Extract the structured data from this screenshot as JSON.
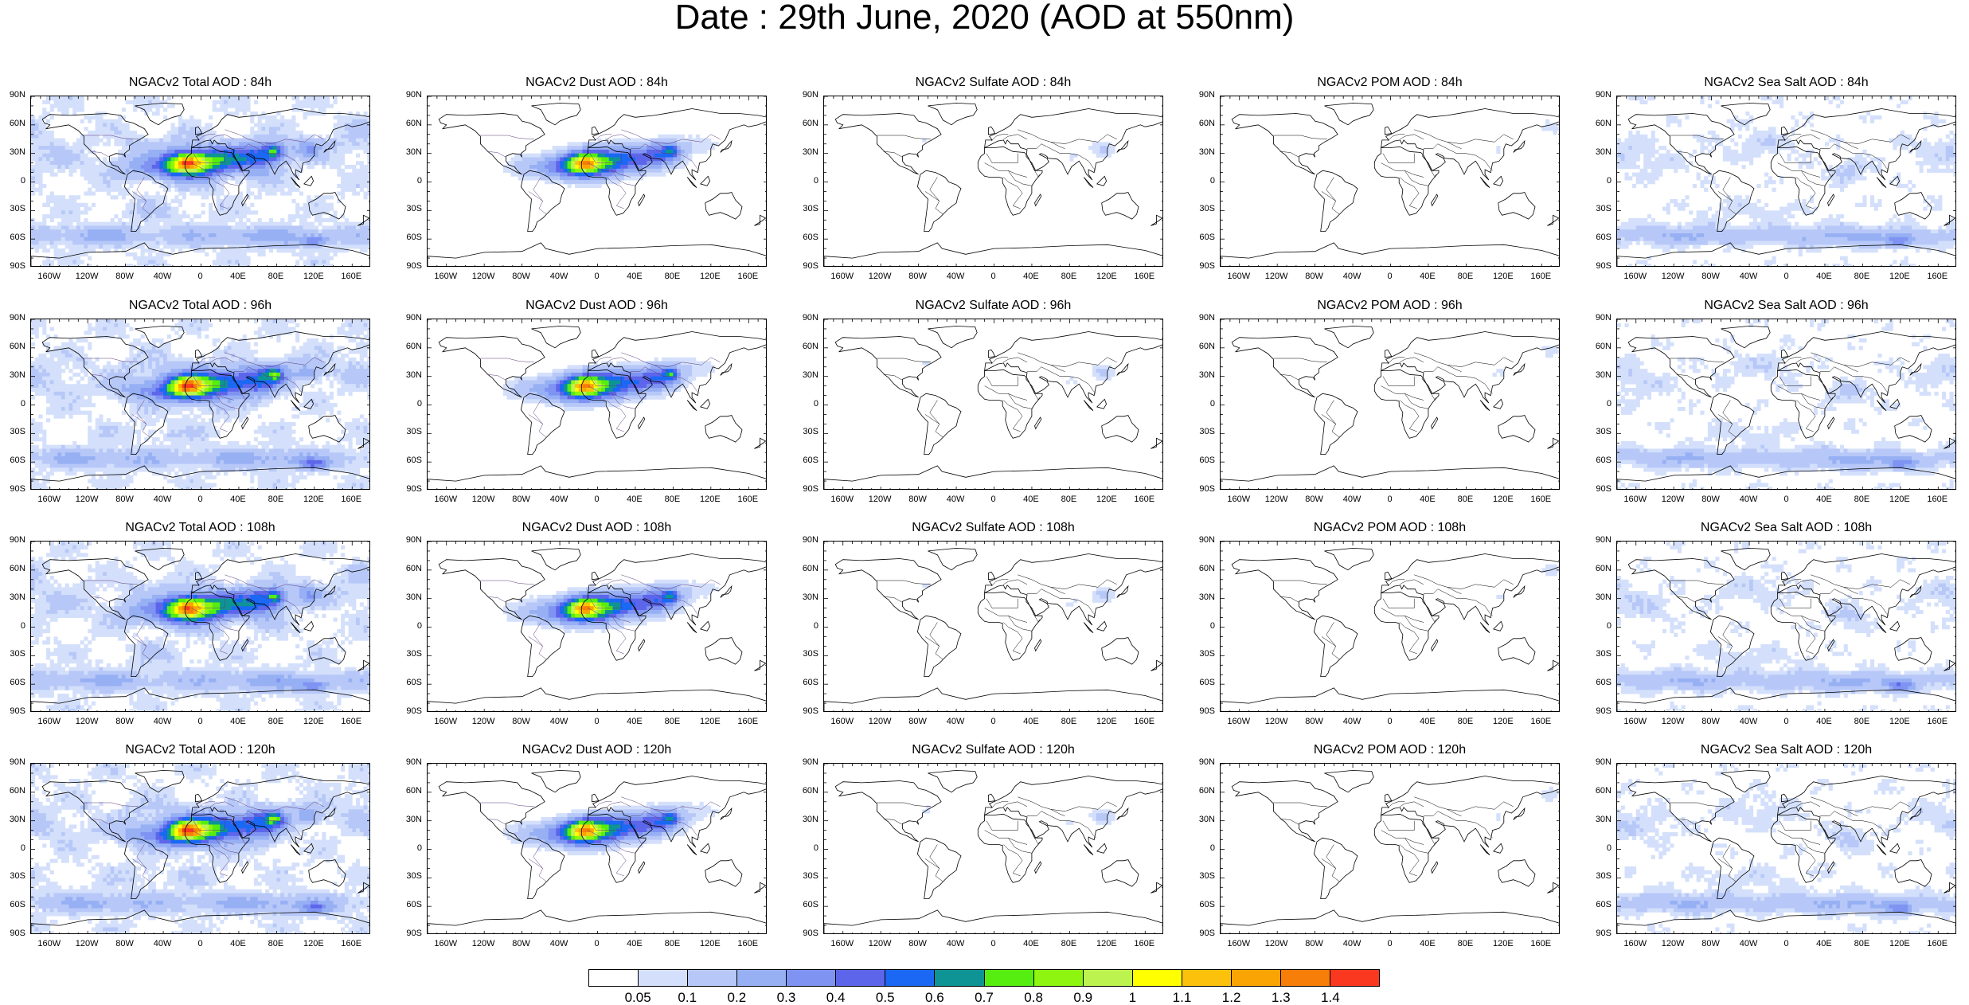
{
  "main_title": "Date : 29th June, 2020 (AOD at 550nm)",
  "lat_ticks": [
    "90N",
    "60N",
    "30N",
    "0",
    "30S",
    "60S",
    "90S"
  ],
  "lon_ticks": [
    "160W",
    "120W",
    "80W",
    "40W",
    "0",
    "40E",
    "80E",
    "120E",
    "160E"
  ],
  "lon_tick_degrees": [
    -160,
    -120,
    -80,
    -40,
    0,
    40,
    80,
    120,
    160
  ],
  "panels": [
    {
      "title": "NGACv2 Total AOD : 84h",
      "species": "total",
      "hour": 84
    },
    {
      "title": "NGACv2 Dust AOD : 84h",
      "species": "dust",
      "hour": 84
    },
    {
      "title": "NGACv2 Sulfate AOD : 84h",
      "species": "sulfate",
      "hour": 84
    },
    {
      "title": "NGACv2 POM AOD : 84h",
      "species": "pom",
      "hour": 84
    },
    {
      "title": "NGACv2 Sea Salt AOD : 84h",
      "species": "seasalt",
      "hour": 84
    },
    {
      "title": "NGACv2 Total AOD : 96h",
      "species": "total",
      "hour": 96
    },
    {
      "title": "NGACv2 Dust AOD : 96h",
      "species": "dust",
      "hour": 96
    },
    {
      "title": "NGACv2 Sulfate AOD : 96h",
      "species": "sulfate",
      "hour": 96
    },
    {
      "title": "NGACv2 POM AOD : 96h",
      "species": "pom",
      "hour": 96
    },
    {
      "title": "NGACv2 Sea Salt AOD : 96h",
      "species": "seasalt",
      "hour": 96
    },
    {
      "title": "NGACv2 Total AOD : 108h",
      "species": "total",
      "hour": 108
    },
    {
      "title": "NGACv2 Dust AOD : 108h",
      "species": "dust",
      "hour": 108
    },
    {
      "title": "NGACv2 Sulfate AOD : 108h",
      "species": "sulfate",
      "hour": 108
    },
    {
      "title": "NGACv2 POM AOD : 108h",
      "species": "pom",
      "hour": 108
    },
    {
      "title": "NGACv2 Sea Salt AOD : 108h",
      "species": "seasalt",
      "hour": 108
    },
    {
      "title": "NGACv2 Total AOD : 120h",
      "species": "total",
      "hour": 120
    },
    {
      "title": "NGACv2 Dust AOD : 120h",
      "species": "dust",
      "hour": 120
    },
    {
      "title": "NGACv2 Sulfate AOD : 120h",
      "species": "sulfate",
      "hour": 120
    },
    {
      "title": "NGACv2 POM AOD : 120h",
      "species": "pom",
      "hour": 120
    },
    {
      "title": "NGACv2 Sea Salt  AOD : 120h",
      "species": "seasalt",
      "hour": 120
    }
  ],
  "colorbar": {
    "colors": [
      "#ffffff",
      "#d4e0fb",
      "#b7c8f8",
      "#97b0f4",
      "#7f93f2",
      "#5d66ea",
      "#1a68f4",
      "#0e9494",
      "#55ee10",
      "#8ef510",
      "#bdf34f",
      "#ffff00",
      "#fcc20b",
      "#faa403",
      "#f77e09",
      "#fa3820"
    ],
    "labels": [
      "0.05",
      "0.1",
      "0.2",
      "0.3",
      "0.4",
      "0.5",
      "0.6",
      "0.7",
      "0.8",
      "0.9",
      "1",
      "1.1",
      "1.2",
      "1.3",
      "1.4"
    ]
  },
  "colors": {
    "coastline": "#000000",
    "border": "#000000",
    "dust_border": "#5a3a7a"
  }
}
